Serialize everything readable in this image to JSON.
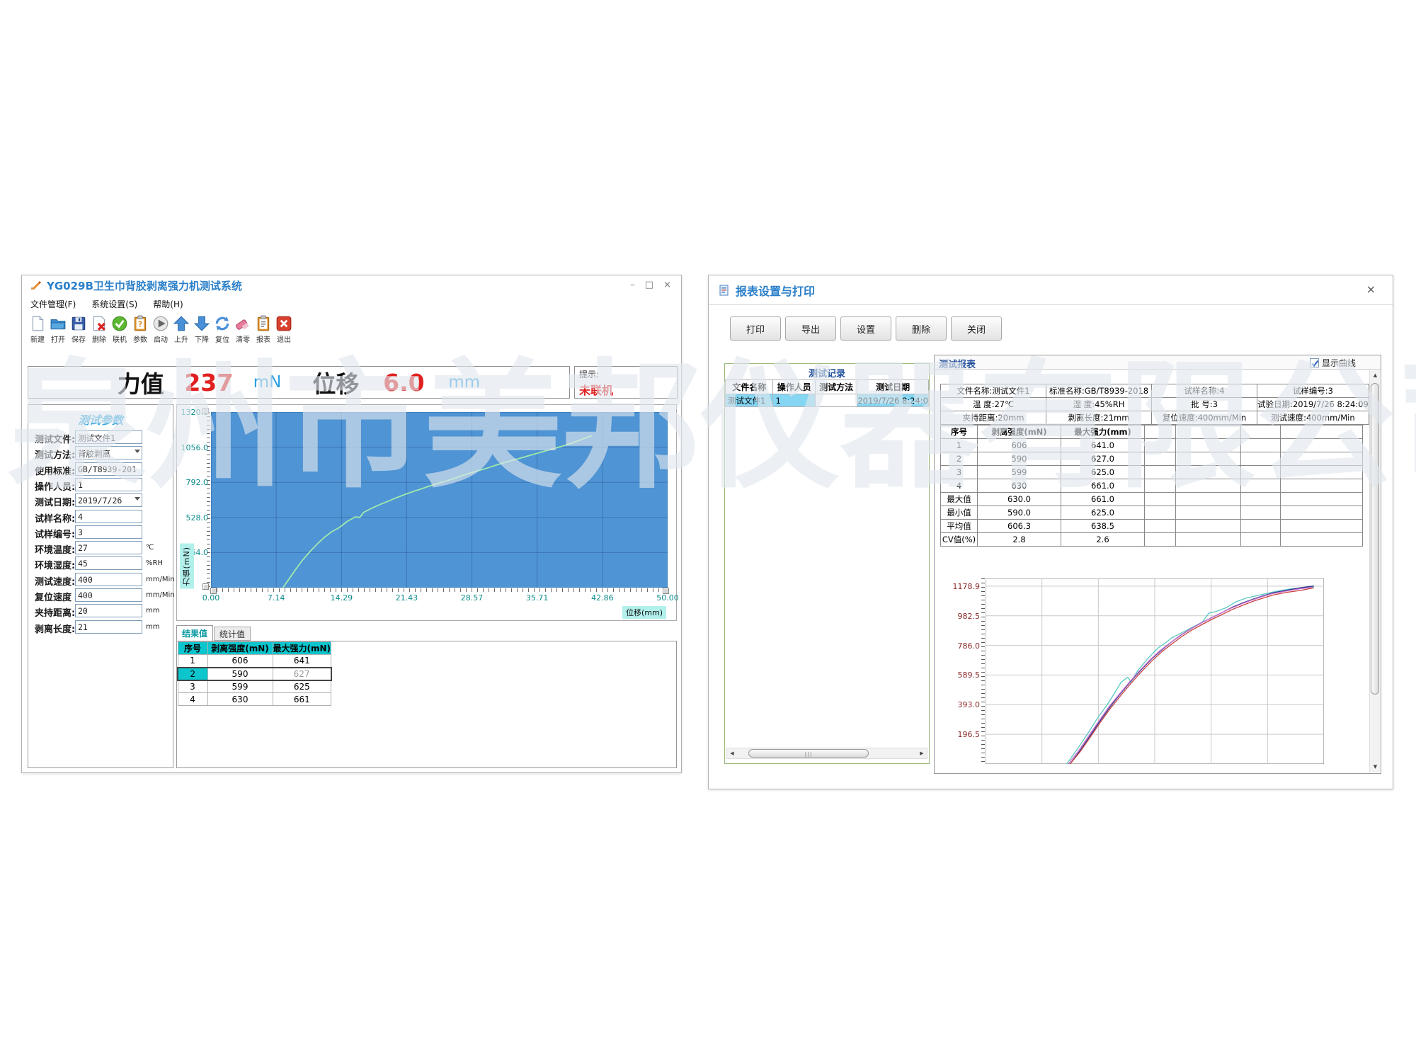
{
  "watermark": "泉州市美邦仪器有限公司",
  "left_window": {
    "title": "YG029B卫生巾背胶剥离强力机测试系统",
    "controls": {
      "minimize": "–",
      "maximize": "□",
      "close": "×"
    },
    "menu": [
      "文件管理(F)",
      "系统设置(S)",
      "帮助(H)"
    ],
    "toolbar": [
      {
        "icon": "new-file-icon",
        "label": "新建"
      },
      {
        "icon": "open-folder-icon",
        "label": "打开"
      },
      {
        "icon": "save-icon",
        "label": "保存"
      },
      {
        "icon": "delete-icon",
        "label": "删除"
      },
      {
        "icon": "connect-icon",
        "label": "联机"
      },
      {
        "icon": "params-icon",
        "label": "参数"
      },
      {
        "icon": "start-icon",
        "label": "启动"
      },
      {
        "icon": "up-icon",
        "label": "上升"
      },
      {
        "icon": "down-icon",
        "label": "下降"
      },
      {
        "icon": "reset-icon",
        "label": "复位"
      },
      {
        "icon": "clear-icon",
        "label": "清零"
      },
      {
        "icon": "report-icon",
        "label": "报表"
      },
      {
        "icon": "exit-icon",
        "label": "退出"
      }
    ],
    "readout": {
      "force_label": "力值",
      "force_value": "237",
      "force_unit": "mN",
      "disp_label": "位移",
      "disp_value": "6.0",
      "disp_unit": "mm"
    },
    "hint": {
      "label": "提示:",
      "status": "未联机"
    },
    "params": {
      "header": "测试参数",
      "fields": [
        {
          "label": "测试文件:",
          "value": "测试文件1",
          "unit": "",
          "dropdown": false
        },
        {
          "label": "测试方法:",
          "value": "背胶剥离",
          "unit": "",
          "dropdown": true
        },
        {
          "label": "使用标准:",
          "value": "GB/T8939-201",
          "unit": "",
          "dropdown": false
        },
        {
          "label": "操作人员:",
          "value": "1",
          "unit": "",
          "dropdown": false
        },
        {
          "label": "测试日期:",
          "value": "2019/7/26",
          "unit": "",
          "dropdown": true
        },
        {
          "label": "试样名称:",
          "value": "4",
          "unit": "",
          "dropdown": false
        },
        {
          "label": "试样编号:",
          "value": "3",
          "unit": "",
          "dropdown": false
        },
        {
          "label": "环境温度:",
          "value": "27",
          "unit": "℃",
          "dropdown": false
        },
        {
          "label": "环境湿度:",
          "value": "45",
          "unit": "%RH",
          "dropdown": false
        },
        {
          "label": "测试速度:",
          "value": "400",
          "unit": "mm/Min",
          "dropdown": false
        },
        {
          "label": "复位速度",
          "value": "400",
          "unit": "mm/Min",
          "dropdown": false
        },
        {
          "label": "夹持距离:",
          "value": "20",
          "unit": "mm",
          "dropdown": false
        },
        {
          "label": "剥离长度:",
          "value": "21",
          "unit": "mm",
          "dropdown": false
        }
      ]
    },
    "tabs": [
      {
        "label": "结果值",
        "active": true
      },
      {
        "label": "统计值",
        "active": false
      }
    ],
    "results_table": {
      "headers": [
        "序号",
        "剥离强度(mN)",
        "最大强力(mN)"
      ],
      "rows": [
        [
          "1",
          "606",
          "641"
        ],
        [
          "2",
          "590",
          "627"
        ],
        [
          "3",
          "599",
          "625"
        ],
        [
          "4",
          "630",
          "661"
        ]
      ],
      "selected_row_index": 1
    }
  },
  "right_window": {
    "title": "报表设置与打印",
    "close": "×",
    "buttons": [
      "打印",
      "导出",
      "设置",
      "删除",
      "关闭"
    ],
    "records": {
      "legend": "测试记录",
      "headers": [
        "文件名称",
        "操作人员",
        "测试方法",
        "测试日期"
      ],
      "rows": [
        [
          "测试文件1",
          "1",
          "",
          "2019/7/26 8:24:0"
        ]
      ]
    },
    "report": {
      "legend": "测试报表",
      "show_curve_label": "显示曲线",
      "show_curve_checked": true,
      "info_rows": [
        [
          "文件名称:测试文件1",
          "标准名称:GB/T8939-2018",
          "试样名称:4",
          "试样编号:3"
        ],
        [
          "温    度:27℃",
          "湿    度:45%RH",
          "批    号:3",
          "试验日期:2019/7/26 8:24:09"
        ],
        [
          "夹持距离:20mm",
          "剥离长度:21mm",
          "复位速度:400mm/Min",
          "测试速度:400mm/Min"
        ]
      ],
      "table": {
        "headers": [
          "序号",
          "剥离强度(mN)",
          "最大强力(mm)"
        ],
        "rows": [
          [
            "1",
            "606",
            "641.0"
          ],
          [
            "2",
            "590",
            "627.0"
          ],
          [
            "3",
            "599",
            "625.0"
          ],
          [
            "4",
            "630",
            "661.0"
          ],
          [
            "最大值",
            "630.0",
            "661.0"
          ],
          [
            "最小值",
            "590.0",
            "625.0"
          ],
          [
            "平均值",
            "606.3",
            "638.5"
          ],
          [
            "CV值(%)",
            "2.8",
            "2.6"
          ]
        ]
      }
    }
  },
  "chart_data": [
    {
      "type": "line",
      "title": "",
      "xlabel": "位移(mm)",
      "ylabel": "力值(mN)",
      "xlim": [
        0,
        50
      ],
      "ylim": [
        0,
        1320
      ],
      "x_ticks": [
        "0.00",
        "7.14",
        "14.29",
        "21.43",
        "28.57",
        "35.71",
        "42.86",
        "50.00"
      ],
      "y_ticks": [
        "1320.0",
        "1056.0",
        "792.0",
        "528.0",
        "264.0"
      ],
      "background": "#4f94d4",
      "grid": true,
      "series": [
        {
          "name": "test-curve",
          "color": "#9fe9ad",
          "points": [
            [
              7.9,
              2
            ],
            [
              8.6,
              70
            ],
            [
              9.3,
              140
            ],
            [
              10.0,
              205
            ],
            [
              10.8,
              268
            ],
            [
              11.6,
              325
            ],
            [
              12.4,
              378
            ],
            [
              13.2,
              420
            ],
            [
              14.0,
              450
            ],
            [
              14.9,
              497
            ],
            [
              15.8,
              532
            ],
            [
              16.3,
              528
            ],
            [
              16.7,
              565
            ],
            [
              17.6,
              597
            ],
            [
              18.5,
              625
            ],
            [
              19.4,
              650
            ],
            [
              20.3,
              676
            ],
            [
              21.2,
              700
            ],
            [
              22.1,
              722
            ],
            [
              23.0,
              742
            ],
            [
              23.9,
              763
            ],
            [
              24.8,
              783
            ],
            [
              25.7,
              800
            ],
            [
              26.6,
              820
            ],
            [
              27.5,
              843
            ],
            [
              28.4,
              862
            ],
            [
              29.3,
              880
            ],
            [
              30.2,
              898
            ],
            [
              31.1,
              918
            ],
            [
              32.0,
              938
            ],
            [
              32.9,
              955
            ],
            [
              33.8,
              972
            ],
            [
              34.7,
              990
            ],
            [
              35.6,
              1008
            ],
            [
              36.5,
              1025
            ],
            [
              37.4,
              1043
            ],
            [
              38.3,
              1060
            ],
            [
              39.2,
              1080
            ],
            [
              40.1,
              1102
            ],
            [
              41.0,
              1125
            ],
            [
              41.7,
              1143
            ]
          ]
        }
      ]
    },
    {
      "type": "line",
      "title": "",
      "xlabel": "",
      "ylabel": "",
      "xlim": [
        0,
        100
      ],
      "ylim": [
        0,
        1230
      ],
      "y_ticks": [
        "1178.9",
        "982.5",
        "786.0",
        "589.5",
        "393.0",
        "196.5"
      ],
      "background": "#ffffff",
      "grid": true,
      "series": [
        {
          "name": "series-1",
          "color": "#58c8c0",
          "points": [
            [
              24,
              0
            ],
            [
              27,
              95
            ],
            [
              30,
              195
            ],
            [
              33,
              300
            ],
            [
              36,
              395
            ],
            [
              38,
              465
            ],
            [
              40,
              540
            ],
            [
              42,
              575
            ],
            [
              43,
              545
            ],
            [
              45,
              620
            ],
            [
              48,
              700
            ],
            [
              51,
              770
            ],
            [
              53,
              800
            ],
            [
              55,
              835
            ],
            [
              58,
              870
            ],
            [
              61,
              905
            ],
            [
              64,
              940
            ],
            [
              66,
              1000
            ],
            [
              68,
              1010
            ],
            [
              71,
              1035
            ],
            [
              74,
              1075
            ],
            [
              77,
              1100
            ],
            [
              80,
              1115
            ],
            [
              83,
              1130
            ],
            [
              86,
              1145
            ],
            [
              90,
              1160
            ],
            [
              93,
              1165
            ],
            [
              97,
              1175
            ]
          ]
        },
        {
          "name": "series-2",
          "color": "#283890",
          "points": [
            [
              25,
              0
            ],
            [
              28,
              90
            ],
            [
              31,
              190
            ],
            [
              34,
              290
            ],
            [
              37,
              385
            ],
            [
              40,
              470
            ],
            [
              43,
              550
            ],
            [
              46,
              625
            ],
            [
              49,
              695
            ],
            [
              52,
              755
            ],
            [
              55,
              810
            ],
            [
              58,
              858
            ],
            [
              61,
              900
            ],
            [
              64,
              938
            ],
            [
              67,
              972
            ],
            [
              70,
              1005
            ],
            [
              73,
              1040
            ],
            [
              76,
              1068
            ],
            [
              79,
              1092
            ],
            [
              82,
              1115
            ],
            [
              85,
              1135
            ],
            [
              89,
              1152
            ],
            [
              93,
              1168
            ],
            [
              97,
              1180
            ]
          ]
        },
        {
          "name": "series-3",
          "color": "#c84040",
          "points": [
            [
              25,
              0
            ],
            [
              28,
              82
            ],
            [
              31,
              180
            ],
            [
              34,
              278
            ],
            [
              37,
              372
            ],
            [
              40,
              455
            ],
            [
              43,
              535
            ],
            [
              46,
              610
            ],
            [
              49,
              680
            ],
            [
              52,
              742
            ],
            [
              55,
              795
            ],
            [
              58,
              845
            ],
            [
              61,
              888
            ],
            [
              64,
              925
            ],
            [
              67,
              960
            ],
            [
              70,
              992
            ],
            [
              73,
              1025
            ],
            [
              76,
              1052
            ],
            [
              79,
              1078
            ],
            [
              82,
              1100
            ],
            [
              85,
              1120
            ],
            [
              89,
              1138
            ],
            [
              93,
              1150
            ],
            [
              97,
              1168
            ]
          ]
        },
        {
          "name": "series-4",
          "color": "#c868c8",
          "points": [
            [
              24.5,
              0
            ],
            [
              27.5,
              88
            ],
            [
              30.5,
              186
            ],
            [
              33.5,
              284
            ],
            [
              36.5,
              380
            ],
            [
              39.5,
              462
            ],
            [
              42.5,
              542
            ],
            [
              45.5,
              618
            ],
            [
              48.5,
              688
            ],
            [
              51.5,
              750
            ],
            [
              54.5,
              802
            ],
            [
              57.5,
              852
            ],
            [
              60.5,
              895
            ],
            [
              63.5,
              932
            ],
            [
              66.5,
              966
            ],
            [
              69.5,
              1000
            ],
            [
              72.5,
              1032
            ],
            [
              75.5,
              1060
            ],
            [
              78.5,
              1085
            ],
            [
              81.5,
              1108
            ],
            [
              84.5,
              1128
            ],
            [
              88.5,
              1145
            ],
            [
              92.5,
              1160
            ],
            [
              96.5,
              1172
            ]
          ]
        }
      ]
    }
  ]
}
